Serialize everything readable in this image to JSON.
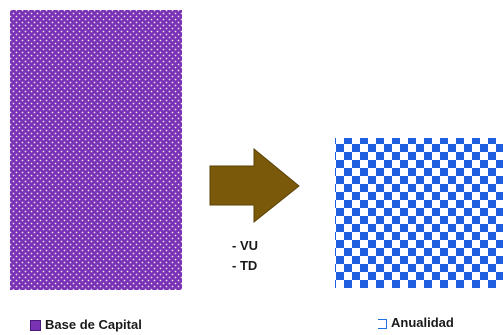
{
  "colors": {
    "capital_fill": "#7a32b4",
    "capital_dot": "#e6dcf2",
    "arrow_fill": "#7a5a0a",
    "arrow_stroke": "#5a4006",
    "checker_blue": "#1f5fe0",
    "checker_white": "#ffffff"
  },
  "arrow": {
    "lines": [
      "- VU",
      "- TD"
    ]
  },
  "legend": {
    "capital": "Base de Capital",
    "annuity": "Anualidad"
  }
}
